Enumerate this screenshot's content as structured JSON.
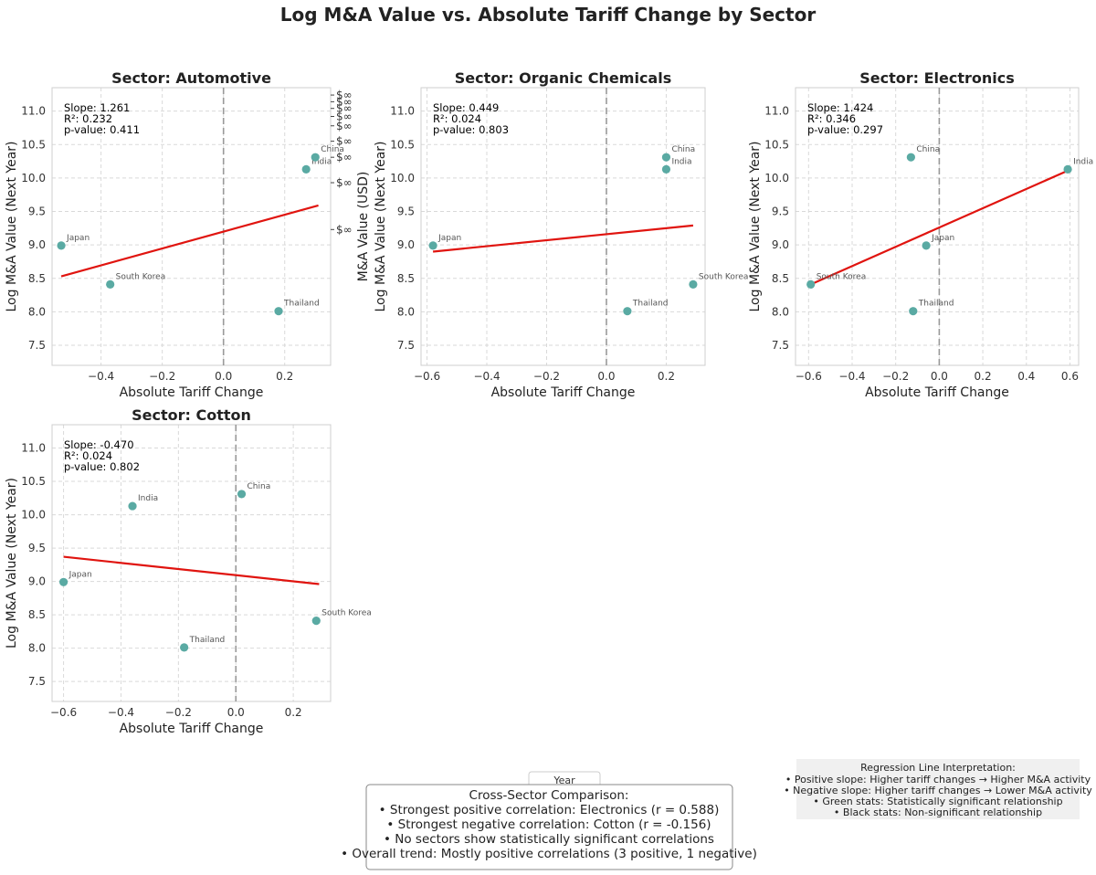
{
  "figure": {
    "title": "Log M&A Value vs. Absolute Tariff Change by Sector"
  },
  "chart_data": [
    {
      "type": "scatter",
      "title": "Sector: Automotive",
      "xlabel": "Absolute Tariff Change",
      "ylabel": "Log M&A Value (Next Year)",
      "xlim": [
        -0.56,
        0.35
      ],
      "ylim": [
        7.2,
        11.35
      ],
      "xticks": [
        -0.4,
        -0.2,
        0.0,
        0.2
      ],
      "yticks": [
        7.5,
        8.0,
        8.5,
        9.0,
        9.5,
        10.0,
        10.5,
        11.0
      ],
      "points": [
        {
          "label": "Japan",
          "x": -0.53,
          "y": 8.99
        },
        {
          "label": "South Korea",
          "x": -0.37,
          "y": 8.41
        },
        {
          "label": "India",
          "x": 0.27,
          "y": 10.13
        },
        {
          "label": "China",
          "x": 0.3,
          "y": 10.31
        },
        {
          "label": "Thailand",
          "x": 0.18,
          "y": 8.01
        }
      ],
      "regression": {
        "x": [
          -0.53,
          0.31
        ],
        "y": [
          8.53,
          9.59
        ]
      },
      "stats": [
        "Slope: 1.261",
        "R²: 0.232",
        "p-value: 0.411"
      ],
      "secondary_axis": {
        "label": "M&A Value (USD)",
        "ticks": [
          {
            "label": "$∞",
            "y": 11.24
          },
          {
            "label": "$∞",
            "y": 11.14
          },
          {
            "label": "$∞",
            "y": 11.04
          },
          {
            "label": "$∞",
            "y": 10.92
          },
          {
            "label": "$∞",
            "y": 10.78
          },
          {
            "label": "$∞",
            "y": 10.55
          },
          {
            "label": "$∞",
            "y": 10.31
          },
          {
            "label": "$∞",
            "y": 9.93
          },
          {
            "label": "$∞",
            "y": 9.23
          }
        ]
      }
    },
    {
      "type": "scatter",
      "title": "Sector: Organic Chemicals",
      "xlabel": "Absolute Tariff Change",
      "ylabel": "Log M&A Value (Next Year)",
      "xlim": [
        -0.62,
        0.33
      ],
      "ylim": [
        7.2,
        11.35
      ],
      "xticks": [
        -0.6,
        -0.4,
        -0.2,
        0.0,
        0.2
      ],
      "yticks": [
        7.5,
        8.0,
        8.5,
        9.0,
        9.5,
        10.0,
        10.5,
        11.0
      ],
      "points": [
        {
          "label": "Japan",
          "x": -0.58,
          "y": 8.99
        },
        {
          "label": "China",
          "x": 0.2,
          "y": 10.31
        },
        {
          "label": "India",
          "x": 0.2,
          "y": 10.13
        },
        {
          "label": "South Korea",
          "x": 0.29,
          "y": 8.41
        },
        {
          "label": "Thailand",
          "x": 0.07,
          "y": 8.01
        }
      ],
      "regression": {
        "x": [
          -0.58,
          0.29
        ],
        "y": [
          8.9,
          9.29
        ]
      },
      "stats": [
        "Slope: 0.449",
        "R²: 0.024",
        "p-value: 0.803"
      ]
    },
    {
      "type": "scatter",
      "title": "Sector: Electronics",
      "xlabel": "Absolute Tariff Change",
      "ylabel": "Log M&A Value (Next Year)",
      "xlim": [
        -0.66,
        0.64
      ],
      "ylim": [
        7.2,
        11.35
      ],
      "xticks": [
        -0.6,
        -0.4,
        -0.2,
        0.0,
        0.2,
        0.4,
        0.6
      ],
      "yticks": [
        7.5,
        8.0,
        8.5,
        9.0,
        9.5,
        10.0,
        10.5,
        11.0
      ],
      "points": [
        {
          "label": "South Korea",
          "x": -0.59,
          "y": 8.41
        },
        {
          "label": "China",
          "x": -0.13,
          "y": 10.31
        },
        {
          "label": "Japan",
          "x": -0.06,
          "y": 8.99
        },
        {
          "label": "Thailand",
          "x": -0.12,
          "y": 8.01
        },
        {
          "label": "India",
          "x": 0.59,
          "y": 10.13
        }
      ],
      "regression": {
        "x": [
          -0.59,
          0.59
        ],
        "y": [
          8.41,
          10.11
        ]
      },
      "stats": [
        "Slope: 1.424",
        "R²: 0.346",
        "p-value: 0.297"
      ]
    },
    {
      "type": "scatter",
      "title": "Sector: Cotton",
      "xlabel": "Absolute Tariff Change",
      "ylabel": "Log M&A Value (Next Year)",
      "xlim": [
        -0.64,
        0.33
      ],
      "ylim": [
        7.2,
        11.35
      ],
      "xticks": [
        -0.6,
        -0.4,
        -0.2,
        0.0,
        0.2
      ],
      "yticks": [
        7.5,
        8.0,
        8.5,
        9.0,
        9.5,
        10.0,
        10.5,
        11.0
      ],
      "points": [
        {
          "label": "Japan",
          "x": -0.6,
          "y": 8.99
        },
        {
          "label": "India",
          "x": -0.36,
          "y": 10.13
        },
        {
          "label": "China",
          "x": 0.02,
          "y": 10.31
        },
        {
          "label": "Thailand",
          "x": -0.18,
          "y": 8.01
        },
        {
          "label": "South Korea",
          "x": 0.28,
          "y": 8.41
        }
      ],
      "regression": {
        "x": [
          -0.6,
          0.29
        ],
        "y": [
          9.37,
          8.96
        ]
      },
      "stats": [
        "Slope: -0.470",
        "R²: 0.024",
        "p-value: 0.802"
      ]
    }
  ],
  "legend": {
    "title": "Year"
  },
  "comparison_box": {
    "title": "Cross-Sector Comparison:",
    "lines": [
      "• Strongest positive correlation: Electronics (r = 0.588)",
      "• Strongest negative correlation: Cotton (r = -0.156)",
      "• No sectors show statistically significant correlations",
      "• Overall trend: Mostly positive correlations (3 positive, 1 negative)"
    ]
  },
  "interpretation_box": {
    "title": "Regression Line Interpretation:",
    "lines": [
      "• Positive slope: Higher tariff changes → Higher M&A activity",
      "• Negative slope: Higher tariff changes → Lower M&A activity",
      "• Green stats: Statistically significant relationship",
      "• Black stats: Non-significant relationship"
    ]
  },
  "colors": {
    "point": "#5aaaa3",
    "regression": "#e0140f",
    "zero_line": "#999999"
  }
}
